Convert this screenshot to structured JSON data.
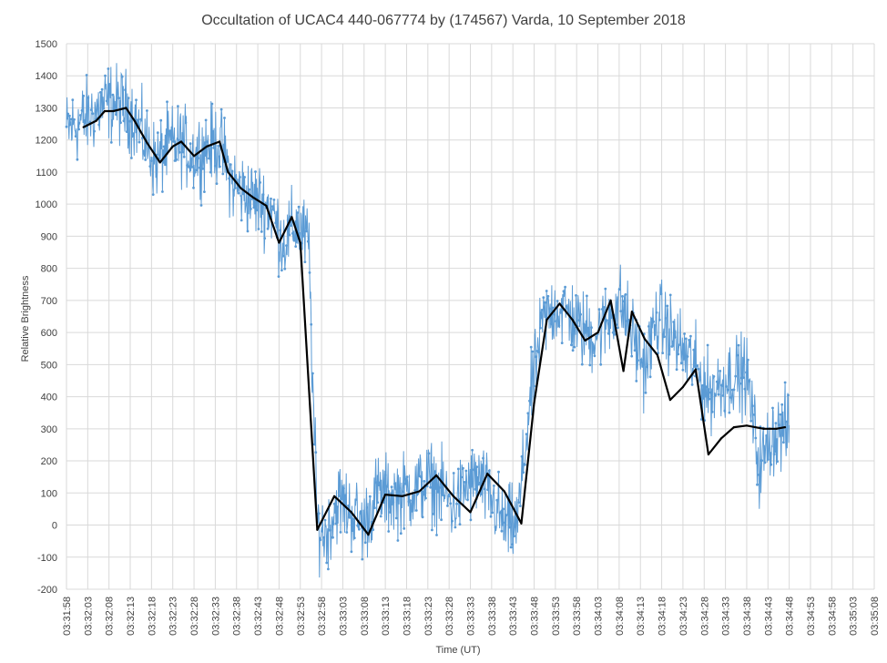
{
  "chart_data": {
    "type": "line",
    "title": "Occultation of UCAC4 440-067774 by (174567) Varda, 10 September 2018",
    "xlabel": "Time (UT)",
    "ylabel": "Relative Brightness",
    "ylim": [
      -200,
      1500
    ],
    "y_ticks": [
      -200,
      -100,
      0,
      100,
      200,
      300,
      400,
      500,
      600,
      700,
      800,
      900,
      1000,
      1100,
      1200,
      1300,
      1400,
      1500
    ],
    "x_ticks": [
      "03:31:58",
      "03:32:03",
      "03:32:08",
      "03:32:13",
      "03:32:18",
      "03:32:23",
      "03:32:28",
      "03:32:33",
      "03:32:38",
      "03:32:43",
      "03:32:48",
      "03:32:53",
      "03:32:58",
      "03:33:03",
      "03:33:08",
      "03:33:13",
      "03:33:18",
      "03:33:23",
      "03:33:28",
      "03:33:33",
      "03:33:38",
      "03:33:43",
      "03:33:48",
      "03:33:53",
      "03:33:58",
      "03:34:03",
      "03:34:08",
      "03:34:13",
      "03:34:18",
      "03:34:23",
      "03:34:28",
      "03:34:33",
      "03:34:38",
      "03:34:43",
      "03:34:48",
      "03:34:53",
      "03:34:58",
      "03:35:03",
      "03:35:08"
    ],
    "grid": true,
    "legend": "none",
    "series": [
      {
        "color": "#5b9bd5",
        "style": "noisy-markers",
        "x": [
          0,
          5,
          10,
          15,
          18,
          21,
          24,
          27,
          30,
          33,
          36,
          39,
          42,
          45,
          48,
          51,
          54,
          56,
          57,
          58,
          59,
          61,
          64,
          67,
          70,
          73,
          76,
          79,
          82,
          85,
          88,
          91,
          94,
          97,
          100,
          103,
          106,
          109,
          112,
          115,
          118,
          121,
          124,
          127,
          130,
          133,
          136,
          139,
          142,
          145,
          148,
          151,
          154,
          157,
          160,
          163,
          166,
          170
        ],
        "y": [
          1230,
          1270,
          1320,
          1290,
          1210,
          1130,
          1180,
          1190,
          1150,
          1180,
          1190,
          1070,
          1030,
          1010,
          990,
          880,
          940,
          900,
          880,
          400,
          0,
          -30,
          80,
          40,
          0,
          100,
          90,
          100,
          110,
          140,
          110,
          60,
          120,
          140,
          80,
          0,
          0,
          380,
          630,
          680,
          660,
          610,
          590,
          630,
          700,
          600,
          490,
          650,
          600,
          540,
          490,
          410,
          440,
          470,
          470,
          180,
          280,
          300
        ]
      },
      {
        "color": "#000000",
        "style": "smoothed",
        "x": [
          4,
          7,
          9,
          11,
          14,
          16,
          19,
          22,
          25,
          27,
          30,
          33,
          36,
          38,
          41,
          44,
          47,
          50,
          53,
          55,
          59,
          63,
          67,
          71,
          75,
          79,
          83,
          87,
          91,
          95,
          99,
          103,
          107,
          110,
          113,
          116,
          119,
          122,
          125,
          128,
          131,
          133,
          136,
          139,
          142,
          145,
          148,
          151,
          154,
          157,
          160,
          164,
          167,
          169
        ],
        "y": [
          1240,
          1260,
          1290,
          1290,
          1300,
          1260,
          1190,
          1130,
          1180,
          1195,
          1150,
          1180,
          1195,
          1100,
          1050,
          1020,
          995,
          880,
          960,
          880,
          -15,
          90,
          40,
          -30,
          95,
          90,
          105,
          155,
          90,
          40,
          160,
          105,
          5,
          380,
          640,
          690,
          640,
          575,
          600,
          700,
          480,
          665,
          580,
          530,
          390,
          430,
          485,
          220,
          270,
          305,
          310,
          300,
          300,
          305
        ]
      }
    ]
  }
}
